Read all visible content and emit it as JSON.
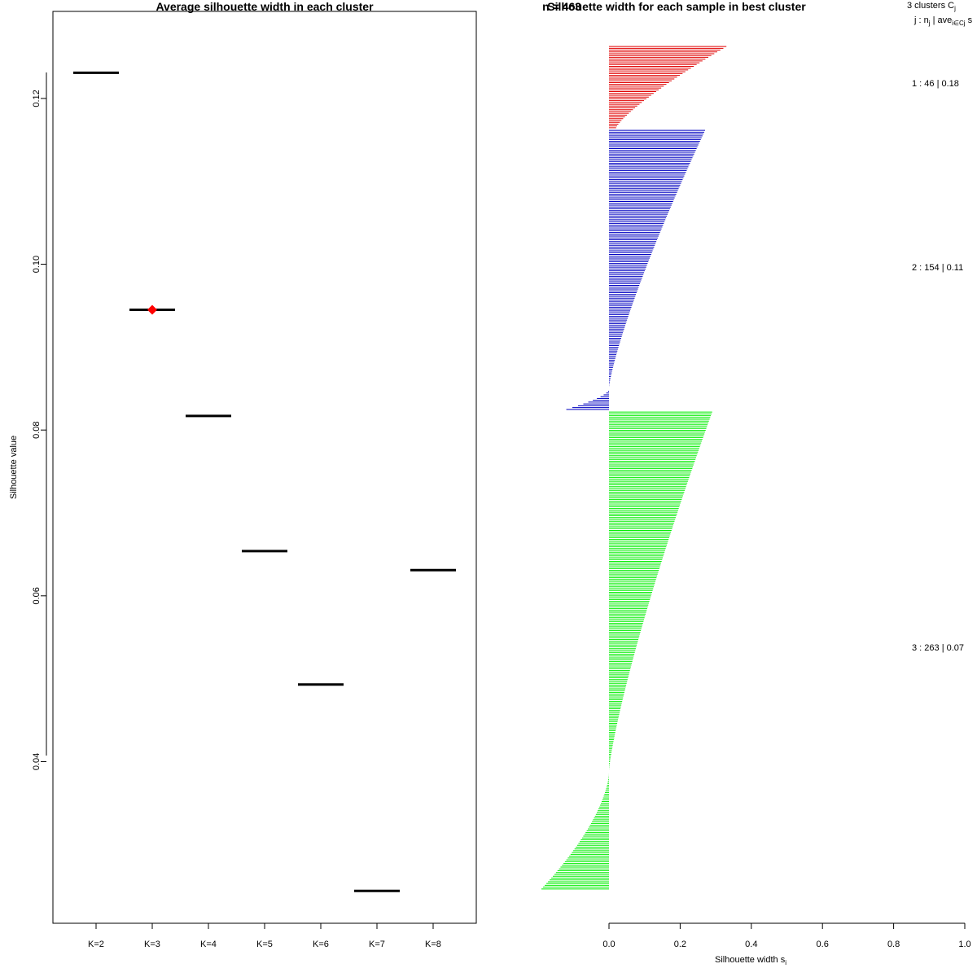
{
  "colors": {
    "avg_segment": "#000000",
    "best_marker": "#ff0000",
    "cluster_1": "#e00000",
    "cluster_2": "#0000c0",
    "cluster_3": "#00ee00"
  },
  "chart_data": [
    {
      "type": "scatter",
      "title": "Average silhouette width in each cluster",
      "xlabel": "",
      "ylabel": "Silhouette value",
      "categories": [
        "K=2",
        "K=3",
        "K=4",
        "K=5",
        "K=6",
        "K=7",
        "K=8"
      ],
      "values": [
        0.1231,
        0.0945,
        0.0817,
        0.0654,
        0.0493,
        0.0244,
        0.0631
      ],
      "best": "K=3",
      "yticks": [
        "0.04",
        "0.06",
        "0.08",
        "0.10",
        "0.12"
      ],
      "ylim": [
        0.0205,
        0.1305
      ]
    },
    {
      "type": "bar",
      "title": "Silhouette width for each sample in best cluster",
      "title_overlap": "n = 463",
      "xlabel": "Silhouette width s",
      "xlabel_sub": "i",
      "xticks": [
        "0.0",
        "0.2",
        "0.4",
        "0.6",
        "0.8",
        "1.0"
      ],
      "xlim": [
        0,
        1
      ],
      "legend_header": {
        "line1_main": "3  clusters  C",
        "line1_sub": "j",
        "line2_main": "j :  n",
        "line2_sub": "j",
        "line2_mid": " | ave",
        "line2_sub2": "i∈Cj",
        "line2_end": "  s"
      },
      "clusters": [
        {
          "label": "1 :  46  |  0.18",
          "n": 46,
          "max": 0.33,
          "min": 0.02,
          "neg": 0,
          "negmin": 0
        },
        {
          "label": "2 :  154  |  0.11",
          "n": 154,
          "max": 0.27,
          "min": 0.0,
          "neg": 12,
          "negmin": -0.12
        },
        {
          "label": "3 :  263  |  0.07",
          "n": 263,
          "max": 0.29,
          "min": 0.0,
          "neg": 65,
          "negmin": -0.19
        }
      ]
    }
  ]
}
